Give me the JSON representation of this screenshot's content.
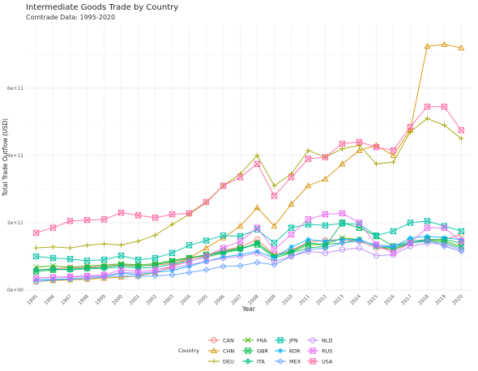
{
  "title": "Intermediate Goods Trade by Country",
  "subtitle": "Comtrade Data: 1995-2020",
  "chart_data": {
    "type": "line",
    "title": "Intermediate Goods Trade by Country",
    "subtitle": "Comtrade Data: 1995-2020",
    "xlabel": "Year",
    "ylabel": "Total Trade Outflow (USD)",
    "x": [
      1995,
      1996,
      1997,
      1998,
      1999,
      2000,
      2001,
      2002,
      2003,
      2004,
      2005,
      2006,
      2007,
      2008,
      2009,
      2010,
      2011,
      2012,
      2013,
      2014,
      2015,
      2016,
      2017,
      2018,
      2019,
      2020
    ],
    "ylim": [
      0,
      790000000000
    ],
    "yticks": [
      0,
      200000000000,
      400000000000,
      600000000000
    ],
    "ytick_labels": [
      "0e+00",
      "2e+11",
      "4e+11",
      "6e+11"
    ],
    "grid": true,
    "legend_title": "Country",
    "legend_position": "bottom",
    "series": [
      {
        "name": "CAN",
        "color": "#F8766D",
        "marker": "circle",
        "values": [
          60000000000.0,
          63000000000.0,
          66000000000.0,
          68000000000.0,
          70000000000.0,
          75000000000.0,
          72000000000.0,
          73000000000.0,
          80000000000.0,
          92000000000.0,
          103000000000.0,
          118000000000.0,
          128000000000.0,
          150000000000.0,
          105000000000.0,
          118000000000.0,
          142000000000.0,
          148000000000.0,
          150000000000.0,
          145000000000.0,
          125000000000.0,
          120000000000.0,
          138000000000.0,
          150000000000.0,
          150000000000.0,
          165000000000.0
        ]
      },
      {
        "name": "CHN",
        "color": "#D89000",
        "marker": "triangle",
        "values": [
          25000000000.0,
          28000000000.0,
          30000000000.0,
          32000000000.0,
          35000000000.0,
          38000000000.0,
          42000000000.0,
          52000000000.0,
          70000000000.0,
          95000000000.0,
          125000000000.0,
          155000000000.0,
          190000000000.0,
          245000000000.0,
          190000000000.0,
          255000000000.0,
          310000000000.0,
          330000000000.0,
          375000000000.0,
          415000000000.0,
          430000000000.0,
          400000000000.0,
          475000000000.0,
          725000000000.0,
          730000000000.0,
          720000000000.0
        ]
      },
      {
        "name": "DEU",
        "color": "#A3A500",
        "marker": "plus",
        "values": [
          125000000000.0,
          128000000000.0,
          125000000000.0,
          133000000000.0,
          137000000000.0,
          134000000000.0,
          145000000000.0,
          163000000000.0,
          195000000000.0,
          225000000000.0,
          260000000000.0,
          310000000000.0,
          345000000000.0,
          400000000000.0,
          310000000000.0,
          345000000000.0,
          415000000000.0,
          395000000000.0,
          420000000000.0,
          430000000000.0,
          375000000000.0,
          380000000000.0,
          470000000000.0,
          510000000000.0,
          490000000000.0,
          450000000000.0
        ]
      },
      {
        "name": "FRA",
        "color": "#39B600",
        "marker": "x",
        "values": [
          68000000000.0,
          72000000000.0,
          67000000000.0,
          72000000000.0,
          74000000000.0,
          78000000000.0,
          75000000000.0,
          78000000000.0,
          88000000000.0,
          96000000000.0,
          102000000000.0,
          112000000000.0,
          122000000000.0,
          140000000000.0,
          102000000000.0,
          112000000000.0,
          135000000000.0,
          135000000000.0,
          155000000000.0,
          150000000000.0,
          130000000000.0,
          120000000000.0,
          140000000000.0,
          148000000000.0,
          145000000000.0,
          130000000000.0
        ]
      },
      {
        "name": "GBR",
        "color": "#00BB4E",
        "marker": "square-x",
        "values": [
          55000000000.0,
          60000000000.0,
          62000000000.0,
          65000000000.0,
          68000000000.0,
          74000000000.0,
          70000000000.0,
          75000000000.0,
          85000000000.0,
          95000000000.0,
          105000000000.0,
          115000000000.0,
          125000000000.0,
          135000000000.0,
          95000000000.0,
          110000000000.0,
          125000000000.0,
          130000000000.0,
          200000000000.0,
          185000000000.0,
          160000000000.0,
          130000000000.0,
          145000000000.0,
          150000000000.0,
          150000000000.0,
          140000000000.0
        ]
      },
      {
        "name": "ITA",
        "color": "#00BF7D",
        "marker": "diamond-plus",
        "values": [
          60000000000.0,
          62000000000.0,
          60000000000.0,
          63000000000.0,
          64000000000.0,
          69000000000.0,
          65000000000.0,
          67000000000.0,
          77000000000.0,
          86000000000.0,
          98000000000.0,
          110000000000.0,
          120000000000.0,
          140000000000.0,
          100000000000.0,
          115000000000.0,
          140000000000.0,
          135000000000.0,
          140000000000.0,
          150000000000.0,
          130000000000.0,
          125000000000.0,
          140000000000.0,
          145000000000.0,
          140000000000.0,
          125000000000.0
        ]
      },
      {
        "name": "JPN",
        "color": "#00C1A7",
        "marker": "square-x",
        "values": [
          100000000000.0,
          95000000000.0,
          92000000000.0,
          87000000000.0,
          90000000000.0,
          102000000000.0,
          90000000000.0,
          95000000000.0,
          110000000000.0,
          133000000000.0,
          147000000000.0,
          162000000000.0,
          160000000000.0,
          180000000000.0,
          140000000000.0,
          185000000000.0,
          195000000000.0,
          192000000000.0,
          198000000000.0,
          195000000000.0,
          162000000000.0,
          175000000000.0,
          200000000000.0,
          205000000000.0,
          190000000000.0,
          175000000000.0
        ]
      },
      {
        "name": "KOR",
        "color": "#00B0F6",
        "marker": "star",
        "values": [
          30000000000.0,
          32000000000.0,
          33000000000.0,
          35000000000.0,
          40000000000.0,
          50000000000.0,
          45000000000.0,
          52000000000.0,
          58000000000.0,
          70000000000.0,
          85000000000.0,
          98000000000.0,
          105000000000.0,
          115000000000.0,
          95000000000.0,
          128000000000.0,
          150000000000.0,
          145000000000.0,
          150000000000.0,
          150000000000.0,
          130000000000.0,
          128000000000.0,
          155000000000.0,
          160000000000.0,
          155000000000.0,
          150000000000.0
        ]
      },
      {
        "name": "MEX",
        "color": "#619CFF",
        "marker": "diamond",
        "values": [
          25000000000.0,
          30000000000.0,
          32000000000.0,
          35000000000.0,
          38000000000.0,
          42000000000.0,
          40000000000.0,
          42000000000.0,
          45000000000.0,
          52000000000.0,
          60000000000.0,
          70000000000.0,
          72000000000.0,
          82000000000.0,
          75000000000.0,
          100000000000.0,
          120000000000.0,
          125000000000.0,
          140000000000.0,
          145000000000.0,
          135000000000.0,
          130000000000.0,
          140000000000.0,
          150000000000.0,
          130000000000.0,
          115000000000.0
        ]
      },
      {
        "name": "NLD",
        "color": "#B983FF",
        "marker": "circle",
        "values": [
          35000000000.0,
          38000000000.0,
          38000000000.0,
          40000000000.0,
          42000000000.0,
          52000000000.0,
          50000000000.0,
          55000000000.0,
          65000000000.0,
          75000000000.0,
          85000000000.0,
          95000000000.0,
          100000000000.0,
          110000000000.0,
          85000000000.0,
          100000000000.0,
          115000000000.0,
          110000000000.0,
          120000000000.0,
          125000000000.0,
          102000000000.0,
          105000000000.0,
          130000000000.0,
          140000000000.0,
          135000000000.0,
          120000000000.0
        ]
      },
      {
        "name": "RUS",
        "color": "#E76BF3",
        "marker": "square-x",
        "values": [
          35000000000.0,
          38000000000.0,
          40000000000.0,
          42000000000.0,
          45000000000.0,
          60000000000.0,
          55000000000.0,
          60000000000.0,
          70000000000.0,
          85000000000.0,
          100000000000.0,
          125000000000.0,
          145000000000.0,
          185000000000.0,
          120000000000.0,
          165000000000.0,
          210000000000.0,
          225000000000.0,
          228000000000.0,
          200000000000.0,
          135000000000.0,
          110000000000.0,
          140000000000.0,
          185000000000.0,
          185000000000.0,
          145000000000.0
        ]
      },
      {
        "name": "USA",
        "color": "#FF67A4",
        "marker": "square-x",
        "values": [
          170000000000.0,
          185000000000.0,
          205000000000.0,
          208000000000.0,
          210000000000.0,
          230000000000.0,
          222000000000.0,
          215000000000.0,
          225000000000.0,
          228000000000.0,
          262000000000.0,
          310000000000.0,
          335000000000.0,
          375000000000.0,
          280000000000.0,
          335000000000.0,
          390000000000.0,
          395000000000.0,
          435000000000.0,
          440000000000.0,
          425000000000.0,
          415000000000.0,
          485000000000.0,
          545000000000.0,
          545000000000.0,
          475000000000.0
        ]
      }
    ]
  }
}
